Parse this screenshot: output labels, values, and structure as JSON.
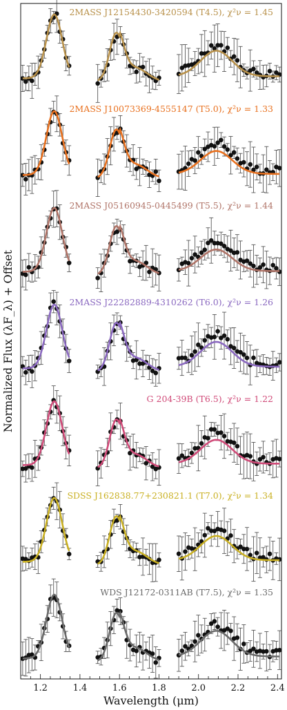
{
  "chart_data": {
    "type": "line",
    "xlabel": "Wavelength (μm)",
    "ylabel": "Normalized Flux (λF_λ) + Offset",
    "xlim": [
      1.1,
      2.42
    ],
    "xticks": [
      "1.2",
      "1.4",
      "1.6",
      "1.8",
      "2.0",
      "2.2",
      "2.4"
    ],
    "legend": "per-panel labels, top-right of each panel",
    "grid": false,
    "series": [
      {
        "name": "2MASS J12154430-3420594 (T4.5), χ²ν = 1.45",
        "color": "#b8914a",
        "scale": 0.68
      },
      {
        "name": "2MASS J10073369-4555147 (T5.0), χ²ν = 1.33",
        "color": "#e8701e",
        "scale": 0.48
      },
      {
        "name": "2MASS J05160945-0445499 (T5.5), χ²ν = 1.44",
        "color": "#b07468",
        "scale": 0.38
      },
      {
        "name": "2MASS J22282889-4310262 (T6.0), χ²ν = 1.26",
        "color": "#8a68c0",
        "scale": 0.62
      },
      {
        "name": "G 204-39B (T6.5), χ²ν = 1.22",
        "color": "#d04a78",
        "scale": 0.55
      },
      {
        "name": "SDSS J162838.77+230821.1 (T7.0), χ²ν = 1.34",
        "color": "#c9b022",
        "scale": 0.58
      },
      {
        "name": "WDS J12172-0311AB (T7.5), χ²ν = 1.35",
        "color": "#6a6a6a",
        "scale": 0.68
      }
    ]
  }
}
